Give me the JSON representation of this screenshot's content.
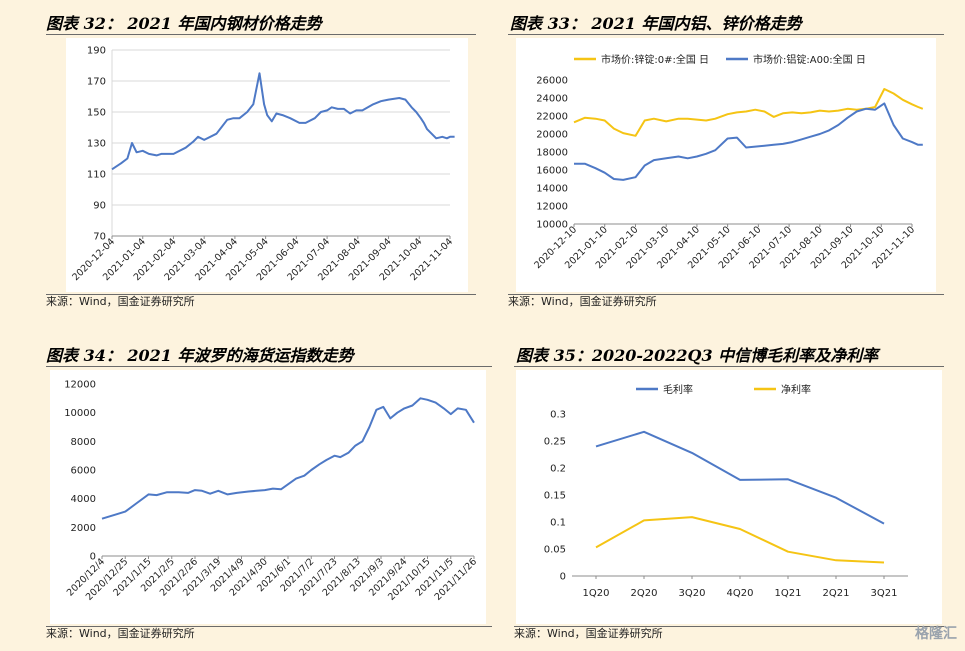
{
  "charts": [
    {
      "title": "图表 32： 2021 年国内钢材价格走势",
      "source": "来源：Wind，国金证券研究所"
    },
    {
      "title": "图表 33： 2021 年国内铝、锌价格走势",
      "source": "来源：Wind，国金证券研究所"
    },
    {
      "title": "图表 34： 2021 年波罗的海货运指数走势",
      "source": "来源：Wind，国金证券研究所"
    },
    {
      "title": "图表 35：2020-2022Q3 中信博毛利率及净利率",
      "source": "来源：Wind，国金证券研究所"
    }
  ],
  "watermark": "格隆汇",
  "chart_data": [
    {
      "type": "line",
      "title": "",
      "xlabel": "",
      "ylabel": "",
      "ylim": [
        70,
        190
      ],
      "yticks": [
        70,
        90,
        110,
        130,
        150,
        170,
        190
      ],
      "xticks": [
        "2020-12-04",
        "2021-01-04",
        "2021-02-04",
        "2021-03-04",
        "2021-04-04",
        "2021-05-04",
        "2021-06-04",
        "2021-07-04",
        "2021-08-04",
        "2021-09-04",
        "2021-10-04",
        "2021-11-04"
      ],
      "grid": true,
      "series": [
        {
          "name": "",
          "color": "#4e79c6",
          "x": [
            0,
            0.3,
            0.5,
            0.65,
            0.8,
            1.0,
            1.2,
            1.45,
            1.6,
            2.0,
            2.4,
            2.65,
            2.8,
            3.0,
            3.4,
            3.75,
            3.95,
            4.15,
            4.4,
            4.6,
            4.8,
            4.95,
            5.05,
            5.2,
            5.35,
            5.55,
            5.8,
            6.1,
            6.3,
            6.6,
            6.8,
            7.0,
            7.15,
            7.35,
            7.55,
            7.75,
            7.95,
            8.15,
            8.5,
            8.75,
            9.0,
            9.35,
            9.55,
            9.75,
            9.9,
            10.05,
            10.15,
            10.25,
            10.4,
            10.55,
            10.75,
            10.9,
            11.0,
            11.15
          ],
          "values": [
            113,
            117,
            120,
            130,
            124,
            125,
            123,
            122,
            123,
            123,
            127,
            131,
            134,
            132,
            136,
            145,
            146,
            146,
            150,
            155,
            175,
            155,
            148,
            144,
            149,
            148,
            146,
            143,
            143,
            146,
            150,
            151,
            153,
            152,
            152,
            149,
            151,
            151,
            155,
            157,
            158,
            159,
            158,
            153,
            150,
            146,
            143,
            139,
            136,
            133,
            134,
            133,
            134,
            134
          ]
        }
      ]
    },
    {
      "type": "line",
      "title": "",
      "xlabel": "",
      "ylabel": "",
      "ylim": [
        10000,
        26000
      ],
      "yticks": [
        10000,
        12000,
        14000,
        16000,
        18000,
        20000,
        22000,
        24000,
        26000
      ],
      "xticks": [
        "2020-12-10",
        "2021-01-10",
        "2021-02-10",
        "2021-03-10",
        "2021-04-10",
        "2021-05-10",
        "2021-06-10",
        "2021-07-10",
        "2021-08-10",
        "2021-09-10",
        "2021-10-10",
        "2021-11-10"
      ],
      "legend": "top",
      "series": [
        {
          "name": "市场价:锌锭:0#:全国 日",
          "color": "#f5c414",
          "x": [
            0,
            0.35,
            0.7,
            1.0,
            1.3,
            1.6,
            2.0,
            2.3,
            2.6,
            3.0,
            3.4,
            3.7,
            4.0,
            4.3,
            4.6,
            5.0,
            5.3,
            5.6,
            5.9,
            6.2,
            6.5,
            6.8,
            7.1,
            7.4,
            7.7,
            8.0,
            8.3,
            8.6,
            8.9,
            9.2,
            9.5,
            9.8,
            10.1,
            10.4,
            10.7,
            11.0,
            11.2,
            11.35
          ],
          "values": [
            21300,
            21800,
            21700,
            21500,
            20600,
            20100,
            19800,
            21500,
            21700,
            21400,
            21700,
            21700,
            21600,
            21500,
            21700,
            22200,
            22400,
            22500,
            22700,
            22500,
            21900,
            22300,
            22400,
            22300,
            22400,
            22600,
            22500,
            22600,
            22800,
            22700,
            22800,
            23000,
            25000,
            24500,
            23800,
            23300,
            23000,
            22800
          ]
        },
        {
          "name": "市场价:铝锭:A00:全国 日",
          "color": "#4e79c6",
          "x": [
            0,
            0.35,
            0.7,
            1.0,
            1.3,
            1.6,
            2.0,
            2.3,
            2.6,
            3.0,
            3.4,
            3.7,
            4.0,
            4.3,
            4.6,
            5.0,
            5.3,
            5.6,
            5.9,
            6.2,
            6.5,
            6.8,
            7.1,
            7.4,
            7.7,
            8.0,
            8.3,
            8.6,
            8.9,
            9.2,
            9.5,
            9.8,
            10.1,
            10.4,
            10.7,
            11.0,
            11.2,
            11.35
          ],
          "values": [
            16700,
            16700,
            16200,
            15700,
            15000,
            14900,
            15200,
            16500,
            17100,
            17300,
            17500,
            17300,
            17500,
            17800,
            18200,
            19500,
            19600,
            18500,
            18600,
            18700,
            18800,
            18900,
            19100,
            19400,
            19700,
            20000,
            20400,
            21000,
            21800,
            22500,
            22800,
            22700,
            23400,
            21000,
            19500,
            19100,
            18800,
            18800
          ]
        }
      ]
    },
    {
      "type": "line",
      "title": "",
      "xlabel": "",
      "ylabel": "",
      "ylim": [
        0,
        12000
      ],
      "yticks": [
        0,
        2000,
        4000,
        6000,
        8000,
        10000,
        12000
      ],
      "xticks": [
        "2020/12/4",
        "2020/12/25",
        "2021/1/15",
        "2021/2/5",
        "2021/2/26",
        "2021/3/19",
        "2021/4/9",
        "2021/4/30",
        "2021/6/1",
        "2021/7/2",
        "2021/7/23",
        "2021/8/13",
        "2021/9/3",
        "2021/9/24",
        "2021/10/15",
        "2021/11/5",
        "2021/11/26"
      ],
      "series": [
        {
          "name": "",
          "color": "#4e79c6",
          "x": [
            0,
            0.6,
            1.0,
            1.5,
            2.0,
            2.35,
            2.8,
            3.3,
            3.7,
            4.0,
            4.3,
            4.65,
            5.0,
            5.4,
            5.8,
            6.3,
            6.65,
            7.0,
            7.35,
            7.7,
            8.0,
            8.35,
            8.7,
            9.0,
            9.35,
            9.65,
            10.0,
            10.25,
            10.6,
            10.9,
            11.2,
            11.5,
            11.8,
            12.1,
            12.4,
            12.7,
            13.0,
            13.35,
            13.7,
            14.0,
            14.35,
            14.7,
            15.0,
            15.3,
            15.65,
            16.0
          ],
          "values": [
            2600,
            2900,
            3100,
            3700,
            4300,
            4250,
            4450,
            4450,
            4400,
            4600,
            4550,
            4350,
            4550,
            4300,
            4400,
            4500,
            4550,
            4600,
            4700,
            4650,
            5000,
            5400,
            5600,
            6000,
            6400,
            6700,
            7000,
            6900,
            7200,
            7700,
            8000,
            9000,
            10200,
            10400,
            9600,
            10000,
            10300,
            10500,
            11000,
            10900,
            10700,
            10300,
            9900,
            10300,
            10200,
            9300
          ]
        }
      ]
    },
    {
      "type": "line",
      "title": "",
      "xlabel": "",
      "ylabel": "",
      "ylim": [
        0,
        0.3
      ],
      "yticks": [
        "0",
        "0.05",
        "0.1",
        "0.15",
        "0.2",
        "0.25",
        "0.3"
      ],
      "categories": [
        "1Q20",
        "2Q20",
        "3Q20",
        "4Q20",
        "1Q21",
        "2Q21",
        "3Q21"
      ],
      "legend": "top",
      "series": [
        {
          "name": "毛利率",
          "color": "#4e79c6",
          "values": [
            0.24,
            0.267,
            0.228,
            0.178,
            0.179,
            0.145,
            0.097
          ]
        },
        {
          "name": "净利率",
          "color": "#f5c414",
          "values": [
            0.053,
            0.103,
            0.109,
            0.087,
            0.045,
            0.029,
            0.025
          ]
        }
      ]
    }
  ]
}
